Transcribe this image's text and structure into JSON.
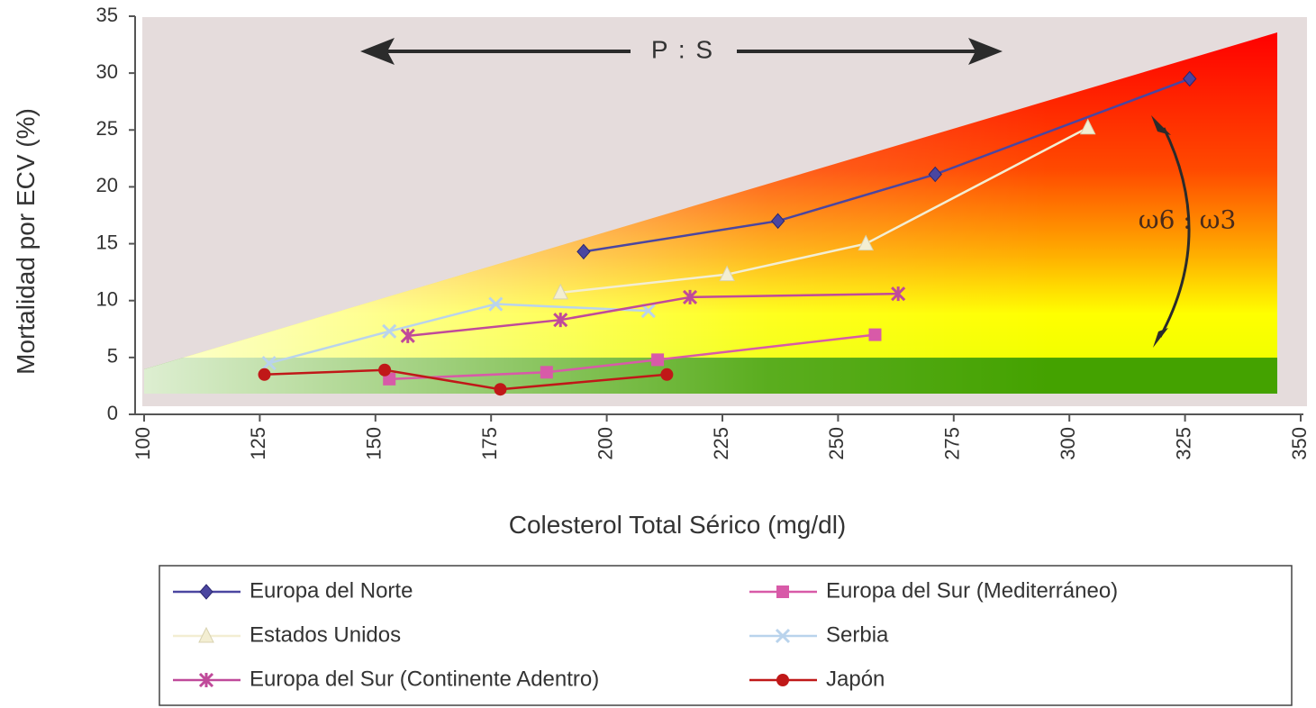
{
  "chart_data": {
    "type": "line",
    "xlabel": "Colesterol Total Sérico (mg/dl)",
    "ylabel": "Mortalidad por ECV (%)",
    "xlim": [
      100,
      350
    ],
    "ylim": [
      0,
      35
    ],
    "xticks": [
      100,
      125,
      150,
      175,
      200,
      225,
      250,
      275,
      300,
      325,
      350
    ],
    "yticks": [
      0,
      5,
      10,
      15,
      20,
      25,
      30,
      35
    ],
    "annotations": {
      "top_arrow": "P : S",
      "side_arrow": "ω6 : ω3"
    },
    "legend_position": "bottom",
    "series": [
      {
        "name": "Europa del Norte",
        "color": "#4b46a0",
        "marker": "diamond",
        "x": [
          195,
          237,
          271,
          326
        ],
        "y": [
          14.3,
          17.0,
          21.1,
          29.5
        ]
      },
      {
        "name": "Europa del Sur (Mediterráneo)",
        "color": "#d85aa8",
        "marker": "square",
        "x": [
          153,
          187,
          211,
          258
        ],
        "y": [
          3.1,
          3.7,
          4.8,
          7.0
        ]
      },
      {
        "name": "Estados Unidos",
        "color": "#f3eed2",
        "marker": "triangle",
        "x": [
          190,
          226,
          256,
          304
        ],
        "y": [
          10.7,
          12.3,
          15.0,
          25.2
        ]
      },
      {
        "name": "Serbia",
        "color": "#b9d3ec",
        "marker": "x",
        "x": [
          127,
          153,
          176,
          209
        ],
        "y": [
          4.5,
          7.3,
          9.7,
          9.1
        ]
      },
      {
        "name": "Europa del Sur (Continente Adentro)",
        "color": "#c04a9a",
        "marker": "star",
        "x": [
          157,
          190,
          218,
          263
        ],
        "y": [
          6.9,
          8.3,
          10.3,
          10.6
        ]
      },
      {
        "name": "Japón",
        "color": "#c01818",
        "marker": "circle",
        "x": [
          126,
          152,
          177,
          213
        ],
        "y": [
          3.5,
          3.9,
          2.2,
          3.5
        ]
      }
    ]
  }
}
